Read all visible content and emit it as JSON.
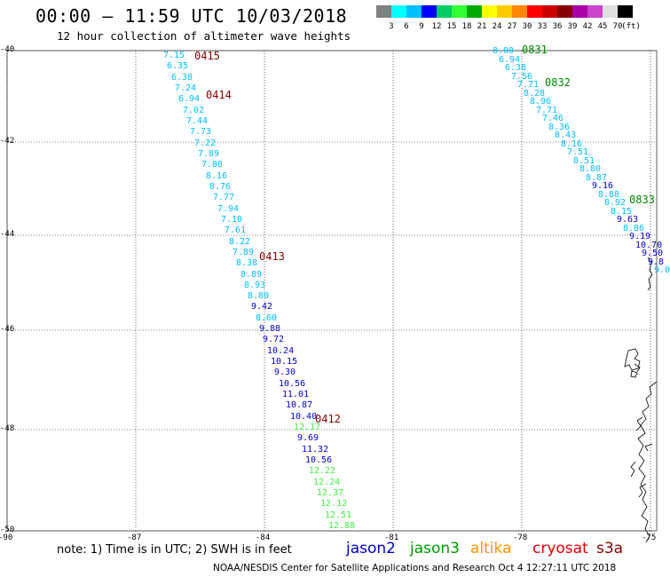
{
  "header": {
    "title": "00:00 — 11:59 UTC 10/03/2018",
    "subtitle": "12 hour collection of altimeter wave heights"
  },
  "colorbar": {
    "unit": "(ft)",
    "colors": [
      "#808080",
      "#00ffff",
      "#00bfff",
      "#0000ff",
      "#00cc66",
      "#33ff33",
      "#00aa00",
      "#ffff00",
      "#ffcc00",
      "#ff8800",
      "#ff0000",
      "#cc0000",
      "#880000",
      "#aa00aa",
      "#cc44cc",
      "#e0e0e0",
      "#000000"
    ],
    "labels": [
      "3",
      "6",
      "9",
      "12",
      "15",
      "18",
      "21",
      "24",
      "27",
      "30",
      "33",
      "36",
      "39",
      "42",
      "45",
      "70"
    ]
  },
  "axes": {
    "lat_ticks": [
      "-40",
      "-42",
      "-44",
      "-46",
      "-48",
      "-50"
    ],
    "lon_ticks": [
      "-90",
      "-87",
      "-84",
      "-81",
      "-78",
      "-75"
    ]
  },
  "passes": {
    "west": [
      "0415",
      "0414",
      "0413",
      "0412"
    ],
    "east": [
      "0831",
      "0832",
      "0833"
    ]
  },
  "track_west": {
    "values": [
      "7.15",
      "6.35",
      "6.38",
      "7.24",
      "6.94",
      "7.02",
      "7.44",
      "7.73",
      "7.22",
      "7.89",
      "7.80",
      "8.16",
      "8.76",
      "7.77",
      "7.94",
      "7.10",
      "7.61",
      "8.22",
      "7.89",
      "8.38",
      "8.89",
      "8.93",
      "8.80",
      "9.42",
      "8.60",
      "9.88",
      "9.72",
      "10.24",
      "10.15",
      "9.30",
      "10.56",
      "11.01",
      "10.87",
      "10.40",
      "12.17",
      "9.69",
      "11.32",
      "10.56",
      "12.22",
      "12.24",
      "12.37",
      "12.12",
      "12.51",
      "12.88"
    ],
    "colors": [
      "#00bfff",
      "#00bfff",
      "#00bfff",
      "#00bfff",
      "#00bfff",
      "#00bfff",
      "#00bfff",
      "#00bfff",
      "#00bfff",
      "#00bfff",
      "#00bfff",
      "#00bfff",
      "#00bfff",
      "#00bfff",
      "#00bfff",
      "#00bfff",
      "#00bfff",
      "#00bfff",
      "#00bfff",
      "#00bfff",
      "#00bfff",
      "#00bfff",
      "#00bfff",
      "#0000cc",
      "#00bfff",
      "#0000cc",
      "#0000cc",
      "#0000cc",
      "#0000cc",
      "#0000cc",
      "#0000cc",
      "#0000cc",
      "#0000cc",
      "#0000cc",
      "#44ee44",
      "#0000cc",
      "#0000cc",
      "#0000cc",
      "#44ee44",
      "#44ee44",
      "#44ee44",
      "#44ee44",
      "#44ee44",
      "#44ee44"
    ]
  },
  "track_east": {
    "values": [
      "8.00",
      "6.94",
      "6.38",
      "7.56",
      "7.71",
      "8.28",
      "8.96",
      "7.71",
      "7.46",
      "8.36",
      "8.43",
      "8.16",
      "7.51",
      "8.51",
      "8.80",
      "8.87",
      "9.16",
      "8.88",
      "8.92",
      "8.15",
      "9.63",
      "8.86",
      "9.19",
      "10.70",
      "9.50",
      "9.8",
      "9.0"
    ],
    "colors": [
      "#00bfff",
      "#00bfff",
      "#00bfff",
      "#00bfff",
      "#00bfff",
      "#00bfff",
      "#00bfff",
      "#00bfff",
      "#00bfff",
      "#00bfff",
      "#00bfff",
      "#00bfff",
      "#00bfff",
      "#00bfff",
      "#00bfff",
      "#00bfff",
      "#0000cc",
      "#00bfff",
      "#00bfff",
      "#00bfff",
      "#0000cc",
      "#00bfff",
      "#0000cc",
      "#0000cc",
      "#0000cc",
      "#0000cc",
      "#00bfff"
    ]
  },
  "footer": {
    "note": "note: 1) Time is in UTC; 2) SWH is in feet",
    "satellites": [
      {
        "name": "jason2",
        "color": "#0000cc"
      },
      {
        "name": "jason3",
        "color": "#009900"
      },
      {
        "name": "altika",
        "color": "#ff9900"
      },
      {
        "name": "cryosat",
        "color": "#dd0000"
      },
      {
        "name": "s3a",
        "color": "#880000"
      }
    ],
    "credit": "NOAA/NESDIS Center for Satellite Applications and Research    Oct  4 12:27:11 UTC 2018"
  }
}
